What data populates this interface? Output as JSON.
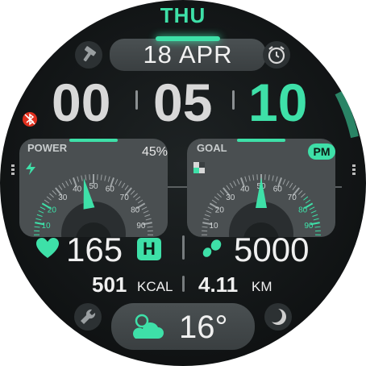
{
  "day": "THU",
  "date": "18 APR",
  "time": {
    "hours": "00",
    "minutes": "05",
    "seconds": "10"
  },
  "power_gauge": {
    "title": "POWER",
    "percent_text": "45%",
    "value_percent": 45,
    "scale_labels": [
      "E",
      "10",
      "20",
      "30",
      "40",
      "50",
      "60",
      "70",
      "80",
      "90",
      "F"
    ]
  },
  "goal_gauge": {
    "title": "GOAL",
    "ampm": "PM",
    "value_percent": 50,
    "scale_labels": [
      "S",
      "10",
      "20",
      "30",
      "40",
      "50",
      "60",
      "70",
      "80",
      "90",
      "F"
    ]
  },
  "heart_rate": {
    "value": "165",
    "badge": "H"
  },
  "steps": {
    "value": "5000"
  },
  "calories": {
    "value": "501",
    "unit": "KCAL"
  },
  "distance": {
    "value": "4.11",
    "unit": "KM"
  },
  "weather": {
    "temperature": "16°",
    "condition_icon": "partly-cloudy-icon"
  },
  "icons": [
    "bluetooth-disconnected-icon",
    "hammer-icon",
    "alarm-clock-icon",
    "wrench-icon",
    "moon-phase-icon",
    "heart-icon",
    "footsteps-icon",
    "bolt-icon",
    "checker-icon"
  ],
  "colors": {
    "accent": "#3ee0a8",
    "background": "#121516",
    "panel": "#4a4f51",
    "text": "#f0f0f0"
  }
}
